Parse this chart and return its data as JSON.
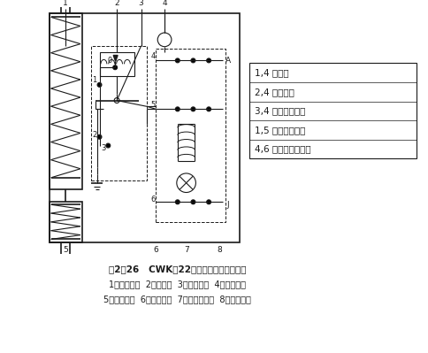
{
  "bg_color": "#ffffff",
  "fig_width": 4.84,
  "fig_height": 3.99,
  "title_line1": "图2－26   CWK－22压差控制器电气原理图",
  "title_line2": "1．低压气箱  2．加热器  3．双金属片  4．复位按钮",
  "title_line3": "5．高压气箱  6．差压开关  7．欠压指示灯  8．延时开关",
  "legend_items": [
    "1,4 接电源",
    "2,4 接加热器",
    "3,4 接正常讯号灯",
    "1,5 接事故讯号灯",
    "4,6 接机器开关线路"
  ]
}
